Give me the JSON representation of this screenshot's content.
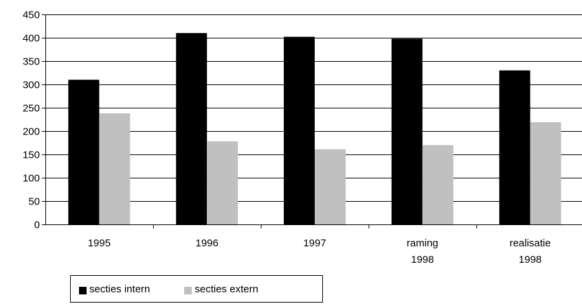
{
  "chart_data": {
    "type": "bar",
    "categories": [
      [
        "1995"
      ],
      [
        "1996"
      ],
      [
        "1997"
      ],
      [
        "raming",
        "1998"
      ],
      [
        "realisatie",
        "1998"
      ]
    ],
    "series": [
      {
        "name": "secties intern",
        "color": "#000000",
        "values": [
          310,
          410,
          402,
          398,
          330
        ]
      },
      {
        "name": "secties extern",
        "color": "#c0c0c0",
        "values": [
          238,
          178,
          161,
          170,
          219
        ]
      }
    ],
    "ylim": [
      0,
      450
    ],
    "yticks": [
      0,
      50,
      100,
      150,
      200,
      250,
      300,
      350,
      400,
      450
    ],
    "grid": true,
    "legend_position": "bottom-left"
  }
}
